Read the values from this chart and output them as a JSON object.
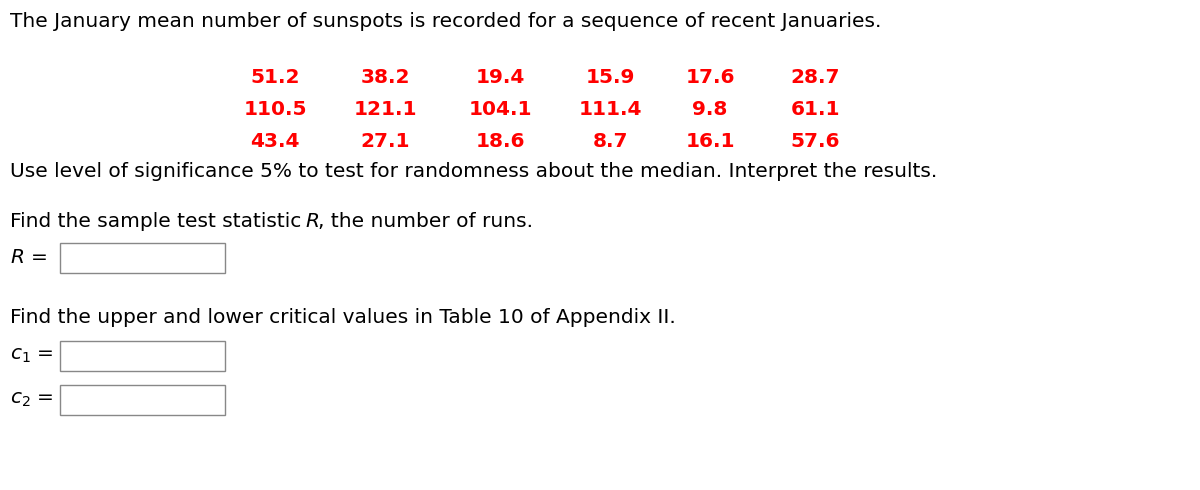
{
  "title": "The January mean number of sunspots is recorded for a sequence of recent Januaries.",
  "data_rows": [
    [
      "51.2",
      "38.2",
      "19.4",
      "15.9",
      "17.6",
      "28.7"
    ],
    [
      "110.5",
      "121.1",
      "104.1",
      "111.4",
      "9.8",
      "61.1"
    ],
    [
      "43.4",
      "27.1",
      "18.6",
      "8.7",
      "16.1",
      "57.6"
    ]
  ],
  "data_color": "#ff0000",
  "text_color": "#000000",
  "bg_color": "#ffffff",
  "subtitle": "Use level of significance 5% to test for randomness about the median. Interpret the results.",
  "section2_label": "Find the upper and lower critical values in Table 10 of Appendix II.",
  "title_fontsize": 14.5,
  "data_fontsize": 14.5,
  "body_fontsize": 14.5,
  "label_fontsize": 14.5
}
